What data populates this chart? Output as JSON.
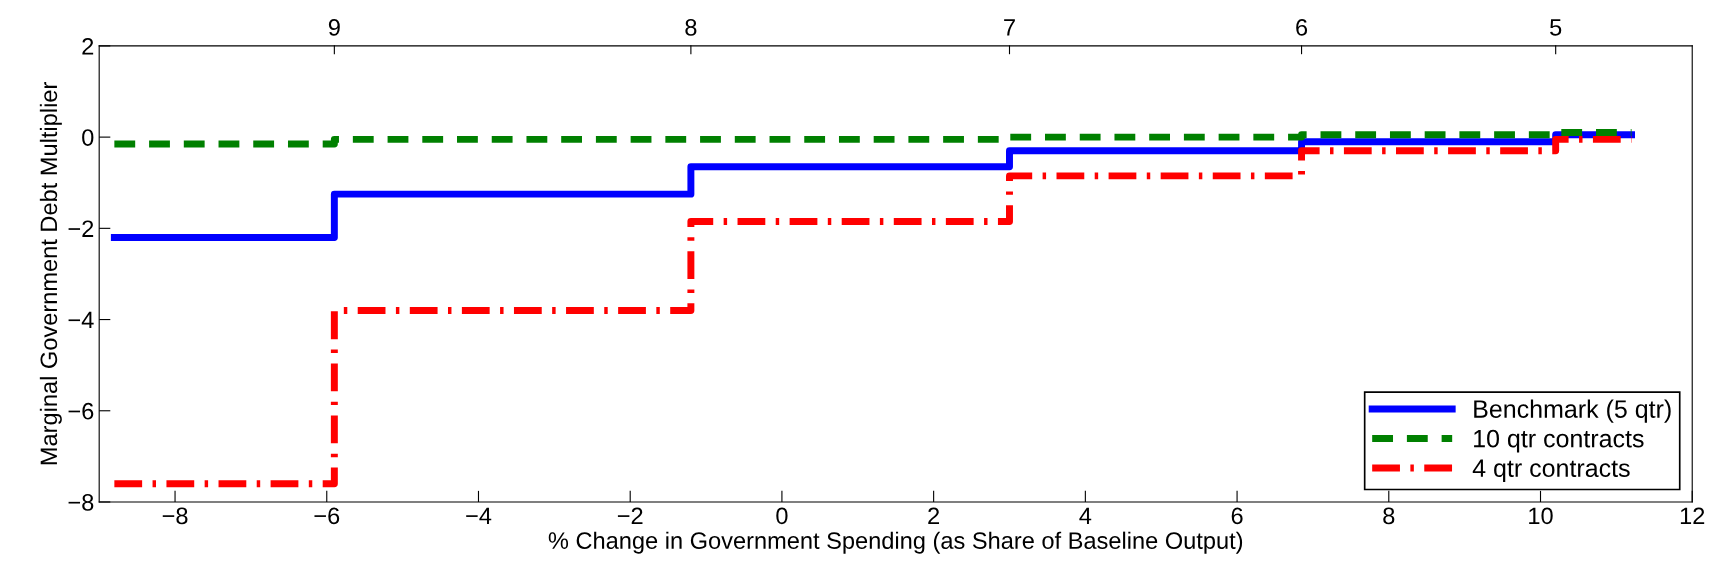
{
  "chart_data": {
    "type": "step",
    "xlabel": "% Change in Government Spending (as Share of Baseline Output)",
    "ylabel": "Marginal Government Debt Multiplier",
    "x": [
      -8.8,
      -5.9,
      -1.2,
      3.0,
      6.85,
      10.2,
      11.2
    ],
    "series": [
      {
        "name": "Benchmark (5 qtr)",
        "color": "#0000ff",
        "line_style": "solid",
        "values": [
          -2.2,
          -1.25,
          -0.65,
          -0.3,
          -0.1,
          0.05,
          0.05
        ]
      },
      {
        "name": "10 qtr contracts",
        "color": "#008000",
        "line_style": "dashed",
        "values": [
          -0.15,
          -0.05,
          -0.05,
          0.0,
          0.05,
          0.1,
          0.1
        ]
      },
      {
        "name": "4 qtr contracts",
        "color": "#ff0000",
        "line_style": "dashdot",
        "values": [
          -7.6,
          -3.8,
          -1.85,
          -0.85,
          -0.3,
          -0.05,
          -0.05
        ]
      }
    ],
    "xlim": [
      -9,
      12
    ],
    "xticks": [
      -8,
      -6,
      -4,
      -2,
      0,
      2,
      4,
      6,
      8,
      10,
      12
    ],
    "ylim": [
      -8,
      2
    ],
    "yticks": [
      -8,
      -6,
      -4,
      -2,
      0,
      2
    ],
    "annotations": [
      {
        "text": "9",
        "x": -5.9
      },
      {
        "text": "8",
        "x": -1.2
      },
      {
        "text": "7",
        "x": 3.0
      },
      {
        "text": "6",
        "x": 6.85
      },
      {
        "text": "5",
        "x": 10.2
      }
    ],
    "grid": false,
    "legend": "bottom right"
  }
}
